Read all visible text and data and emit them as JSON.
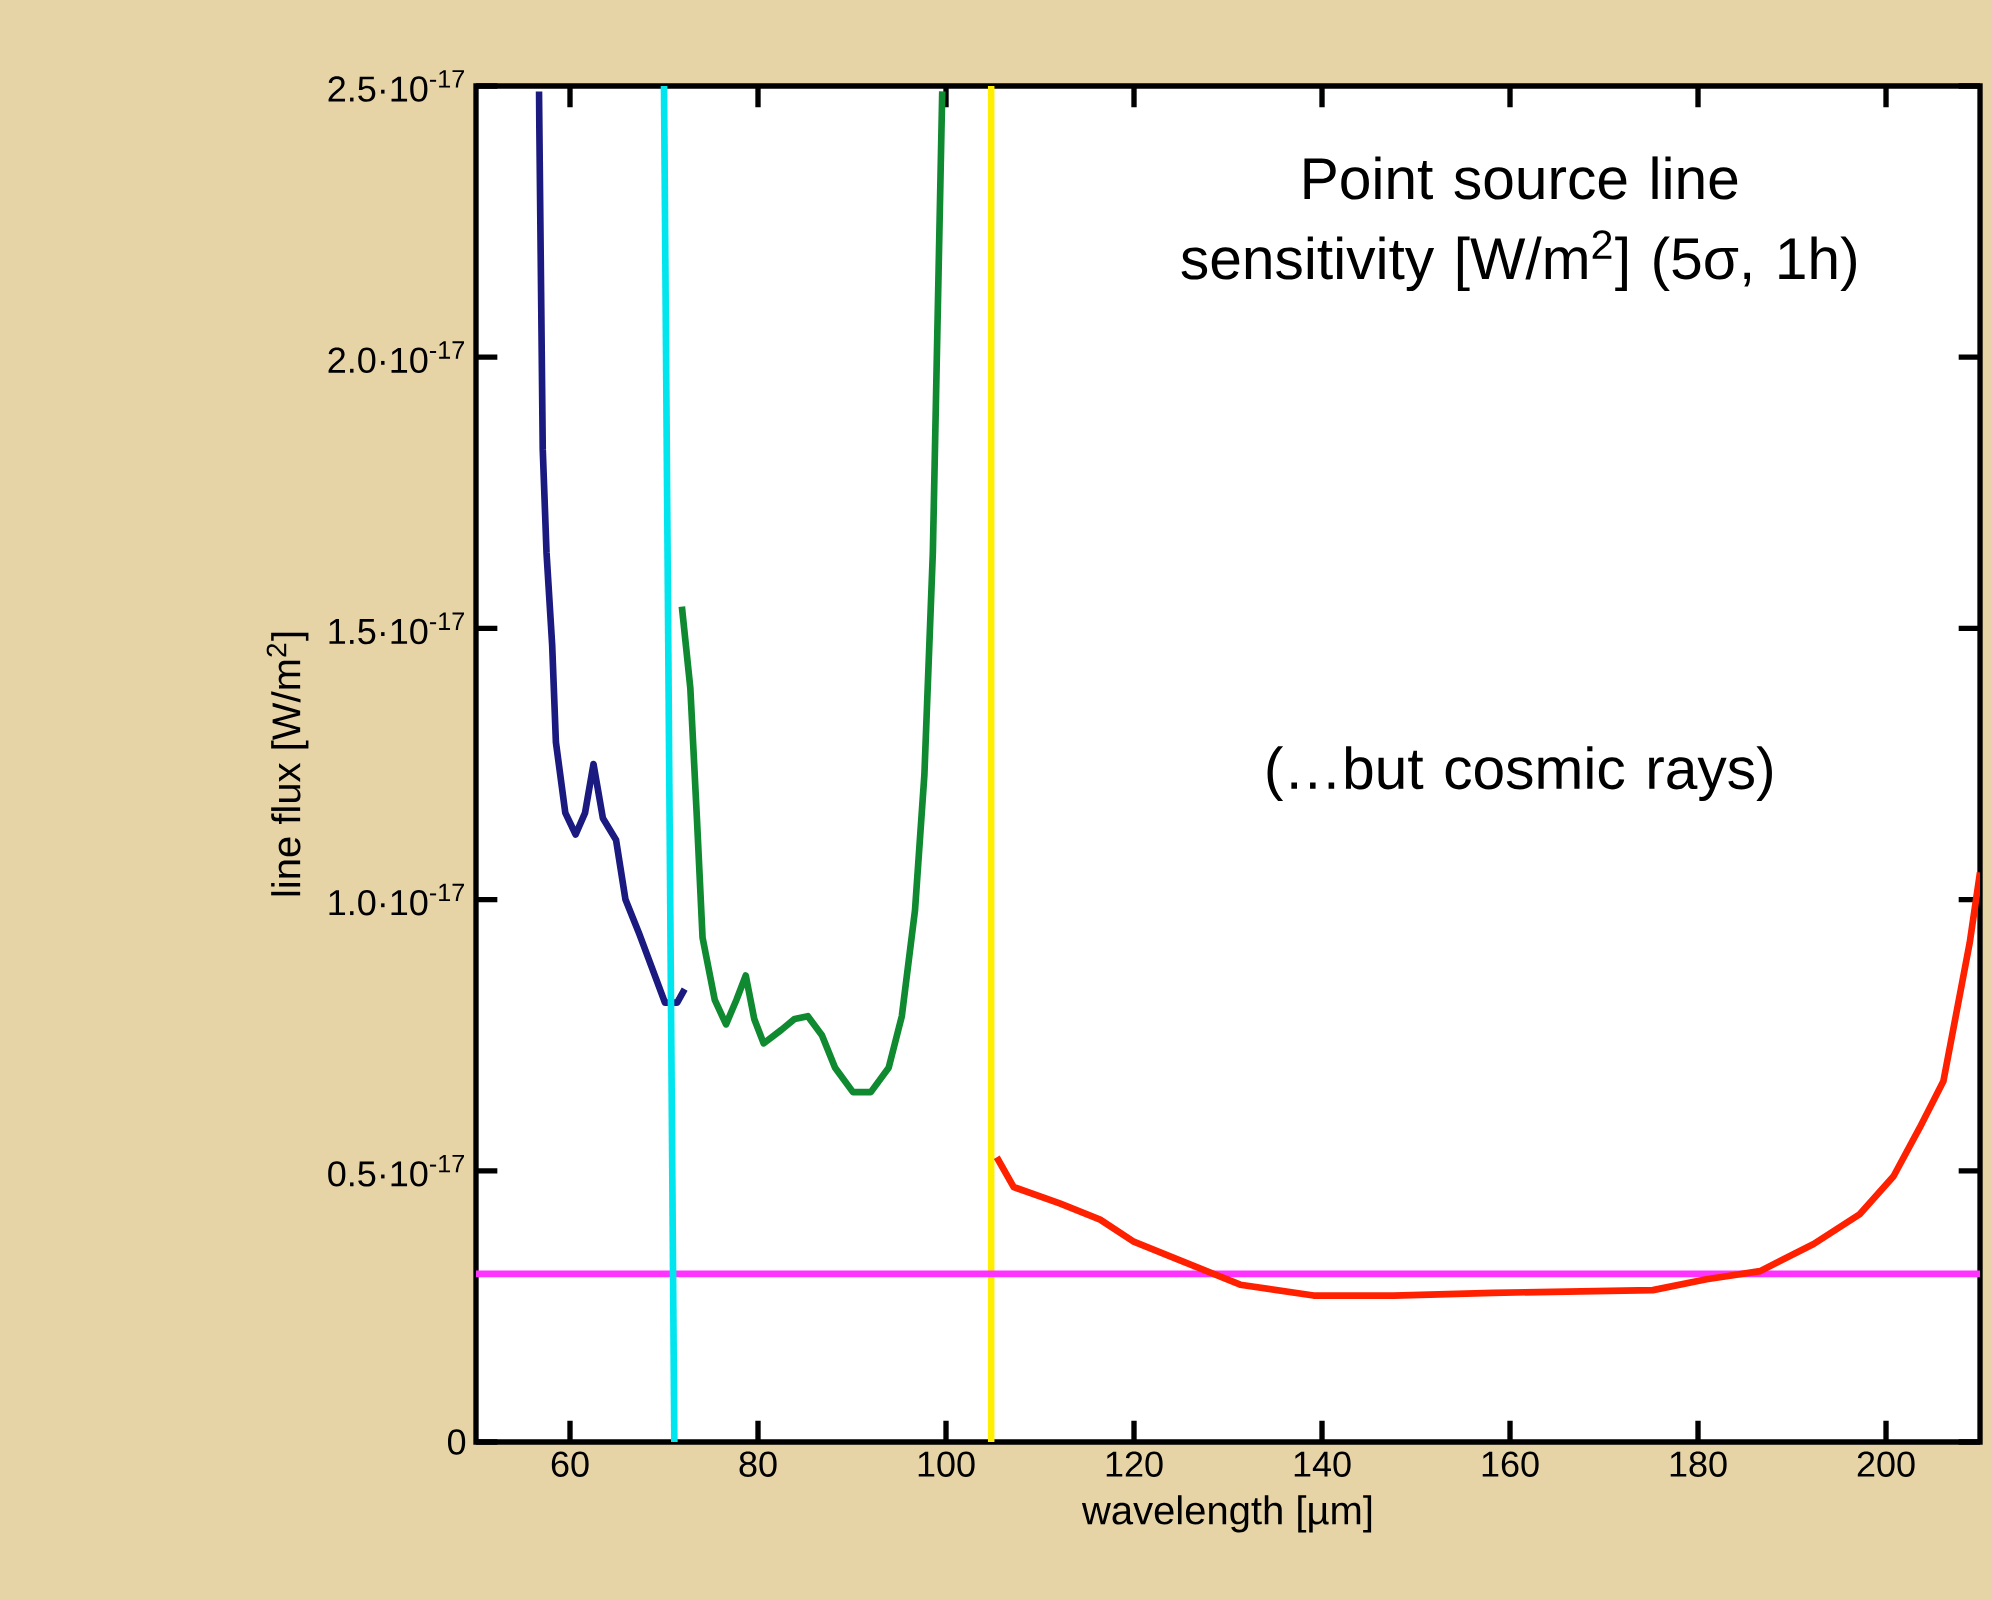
{
  "chart_data": {
    "type": "line",
    "xlabel": "wavelength [µm]",
    "ylabel": "line flux  [W/m$^{2}$]",
    "annotations": [
      "Point source line sensitivity [W/m$^{2}$] (5σ, 1h)",
      "(…but cosmic rays)"
    ],
    "xlim": [
      50,
      210
    ],
    "ylim": [
      0,
      2.5e-17
    ],
    "xticks": [
      60,
      80,
      100,
      120,
      140,
      160,
      180,
      200
    ],
    "yticks": [
      0,
      {
        "value": 5e-18,
        "label": "0.5·10$^{-17}$"
      },
      {
        "value": 1e-17,
        "label": "1.0·10$^{-17}$"
      },
      {
        "value": 1.5e-17,
        "label": "1.5·10$^{-17}$"
      },
      {
        "value": 2e-17,
        "label": "2.0·10$^{-17}$"
      },
      {
        "value": 2.5e-17,
        "label": "2.5·10$^{-17}$"
      }
    ],
    "series": [
      {
        "color": "#1a1a80",
        "x": [
          56.7,
          57.1,
          57.5,
          58.1,
          58.5,
          59.5,
          60.6,
          61.6,
          62.5,
          63.5,
          64.9,
          65.9,
          67.3,
          68.7,
          70.1,
          71.4,
          72.2
        ],
        "values": [
          2.49e-17,
          1.83e-17,
          1.64e-17,
          1.47e-17,
          1.29e-17,
          1.16e-17,
          1.12e-17,
          1.16e-17,
          1.25e-17,
          1.15e-17,
          1.11e-17,
          1e-17,
          9.4e-18,
          8.75e-18,
          8.1e-18,
          8.1e-18,
          8.35e-18
        ]
      },
      {
        "color": "#108a30",
        "x": [
          71.9,
          72.8,
          73.5,
          74.1,
          75.4,
          76.6,
          77.7,
          78.7,
          79.6,
          80.6,
          82.5,
          83.9,
          85.3,
          86.8,
          88.2,
          90.1,
          92.0,
          93.9,
          95.3,
          96.7,
          97.7,
          98.6,
          99.6
        ],
        "values": [
          1.54e-17,
          1.39e-17,
          1.15e-17,
          9.3e-18,
          8.15e-18,
          7.7e-18,
          8.15e-18,
          8.6e-18,
          7.8e-18,
          7.35e-18,
          7.6e-18,
          7.8e-18,
          7.85e-18,
          7.5e-18,
          6.9e-18,
          6.45e-18,
          6.45e-18,
          6.9e-18,
          7.85e-18,
          9.8e-18,
          1.23e-17,
          1.64e-17,
          2.49e-17
        ]
      },
      {
        "color": "#ff2000",
        "x": [
          105.4,
          107.2,
          112.1,
          116.4,
          119.9,
          124.9,
          131.3,
          139.1,
          147.6,
          158.2,
          175.2,
          180.9,
          186.6,
          192.3,
          197.2,
          200.8,
          203.6,
          206.1,
          208.9,
          210
        ],
        "values": [
          5.25e-18,
          4.7e-18,
          4.4e-18,
          4.1e-18,
          3.7e-18,
          3.35e-18,
          2.9e-18,
          2.7e-18,
          2.7e-18,
          2.75e-18,
          2.8e-18,
          3e-18,
          3.15e-18,
          3.65e-18,
          4.2e-18,
          4.9e-18,
          5.8e-18,
          6.65e-18,
          9.2e-18,
          1.05e-17
        ]
      },
      {
        "color": "#00e5ee",
        "x": [
          71.1,
          70.0
        ],
        "values": [
          0,
          2.5e-17
        ]
      }
    ],
    "ref_lines": [
      {
        "axis": "x",
        "value": 104.8,
        "color": "#ffee00"
      },
      {
        "axis": "y",
        "value": 3.1e-18,
        "color": "#ff33ff"
      }
    ]
  }
}
